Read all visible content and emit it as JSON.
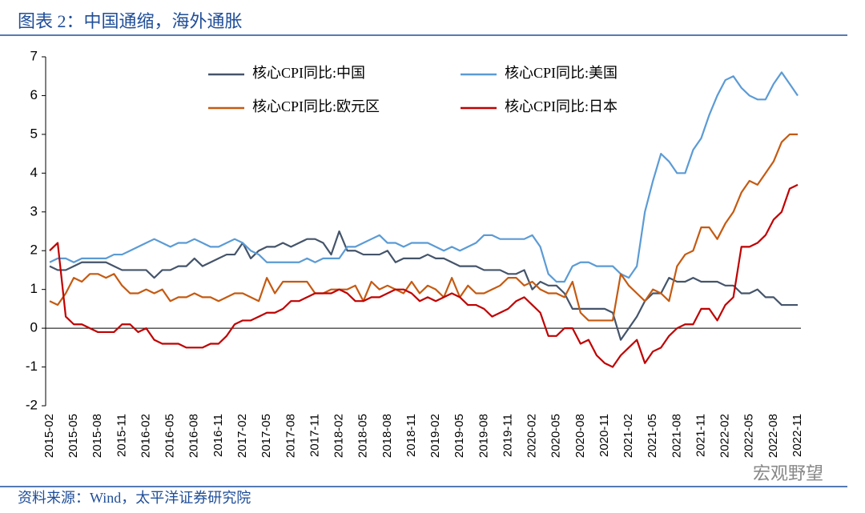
{
  "header": {
    "title": "图表 2：中国通缩，海外通胀"
  },
  "footer": {
    "source": "资料来源：Wind，太平洋证券研究院",
    "watermark": "宏观野望"
  },
  "chart_data": {
    "type": "line",
    "categories": [
      "2015-02",
      null,
      null,
      "2015-05",
      null,
      null,
      "2015-08",
      null,
      null,
      "2015-11",
      null,
      null,
      "2016-02",
      null,
      null,
      "2016-05",
      null,
      null,
      "2016-08",
      null,
      null,
      "2016-11",
      null,
      null,
      "2017-02",
      null,
      null,
      "2017-05",
      null,
      null,
      "2017-08",
      null,
      null,
      "2017-11",
      null,
      null,
      "2018-02",
      null,
      null,
      "2018-05",
      null,
      null,
      "2018-08",
      null,
      null,
      "2018-11",
      null,
      null,
      "2019-02",
      null,
      null,
      "2019-05",
      null,
      null,
      "2019-08",
      null,
      null,
      "2019-11",
      null,
      null,
      "2020-02",
      null,
      null,
      "2020-05",
      null,
      null,
      "2020-08",
      null,
      null,
      "2020-11",
      null,
      null,
      "2021-02",
      null,
      null,
      "2021-05",
      null,
      null,
      "2021-08",
      null,
      null,
      "2021-11",
      null,
      null,
      "2022-02",
      null,
      null,
      "2022-05",
      null,
      null,
      "2022-08",
      null,
      null,
      "2022-11"
    ],
    "series": [
      {
        "name": "核心CPI同比:中国",
        "color": "#44546a",
        "values": [
          1.6,
          1.5,
          1.5,
          1.6,
          1.7,
          1.7,
          1.7,
          1.7,
          1.6,
          1.5,
          1.5,
          1.5,
          1.5,
          1.3,
          1.5,
          1.5,
          1.6,
          1.6,
          1.8,
          1.6,
          1.7,
          1.8,
          1.9,
          1.9,
          2.2,
          1.8,
          2.0,
          2.1,
          2.1,
          2.2,
          2.1,
          2.2,
          2.3,
          2.3,
          2.2,
          1.9,
          2.5,
          2.0,
          2.0,
          1.9,
          1.9,
          1.9,
          2.0,
          1.7,
          1.8,
          1.8,
          1.8,
          1.9,
          1.8,
          1.8,
          1.7,
          1.6,
          1.6,
          1.6,
          1.5,
          1.5,
          1.5,
          1.4,
          1.4,
          1.5,
          1.0,
          1.2,
          1.1,
          1.1,
          0.9,
          0.5,
          0.5,
          0.5,
          0.5,
          0.5,
          0.4,
          -0.3,
          0.0,
          0.3,
          0.7,
          0.9,
          0.9,
          1.3,
          1.2,
          1.2,
          1.3,
          1.2,
          1.2,
          1.2,
          1.1,
          1.1,
          0.9,
          0.9,
          1.0,
          0.8,
          0.8,
          0.6,
          0.6,
          0.6
        ]
      },
      {
        "name": "核心CPI同比:美国",
        "color": "#5b9bd5",
        "values": [
          1.7,
          1.8,
          1.8,
          1.7,
          1.8,
          1.8,
          1.8,
          1.8,
          1.9,
          1.9,
          2.0,
          2.1,
          2.2,
          2.3,
          2.2,
          2.1,
          2.2,
          2.2,
          2.3,
          2.2,
          2.1,
          2.1,
          2.2,
          2.3,
          2.2,
          2.0,
          1.9,
          1.7,
          1.7,
          1.7,
          1.7,
          1.7,
          1.8,
          1.7,
          1.8,
          1.8,
          1.8,
          2.1,
          2.1,
          2.2,
          2.3,
          2.4,
          2.2,
          2.2,
          2.1,
          2.2,
          2.2,
          2.2,
          2.1,
          2.0,
          2.1,
          2.0,
          2.1,
          2.2,
          2.4,
          2.4,
          2.3,
          2.3,
          2.3,
          2.3,
          2.4,
          2.1,
          1.4,
          1.2,
          1.2,
          1.6,
          1.7,
          1.7,
          1.6,
          1.6,
          1.6,
          1.4,
          1.3,
          1.6,
          3.0,
          3.8,
          4.5,
          4.3,
          4.0,
          4.0,
          4.6,
          4.9,
          5.5,
          6.0,
          6.4,
          6.5,
          6.2,
          6.0,
          5.9,
          5.9,
          6.3,
          6.6,
          6.3,
          6.0
        ]
      },
      {
        "name": "核心CPI同比:欧元区",
        "color": "#c55a11",
        "values": [
          0.7,
          0.6,
          0.9,
          1.3,
          1.2,
          1.4,
          1.4,
          1.3,
          1.4,
          1.1,
          0.9,
          0.9,
          1.0,
          0.9,
          1.0,
          0.7,
          0.8,
          0.8,
          0.9,
          0.8,
          0.8,
          0.7,
          0.8,
          0.9,
          0.9,
          0.8,
          0.7,
          1.3,
          0.9,
          1.2,
          1.2,
          1.2,
          1.2,
          0.9,
          0.9,
          1.0,
          1.0,
          1.0,
          1.1,
          0.7,
          1.2,
          1.0,
          1.1,
          1.0,
          0.9,
          1.2,
          0.9,
          1.1,
          1.0,
          0.8,
          1.3,
          0.8,
          1.1,
          0.9,
          0.9,
          1.0,
          1.1,
          1.3,
          1.3,
          1.1,
          1.2,
          1.0,
          0.9,
          0.9,
          0.8,
          1.2,
          0.4,
          0.2,
          0.2,
          0.2,
          0.2,
          1.4,
          1.1,
          0.9,
          0.7,
          1.0,
          0.9,
          0.7,
          1.6,
          1.9,
          2.0,
          2.6,
          2.6,
          2.3,
          2.7,
          3.0,
          3.5,
          3.8,
          3.7,
          4.0,
          4.3,
          4.8,
          5.0,
          5.0
        ]
      },
      {
        "name": "核心CPI同比:日本",
        "color": "#c00000",
        "values": [
          2.0,
          2.2,
          0.3,
          0.1,
          0.1,
          0.0,
          -0.1,
          -0.1,
          -0.1,
          0.1,
          0.1,
          -0.1,
          0.0,
          -0.3,
          -0.4,
          -0.4,
          -0.4,
          -0.5,
          -0.5,
          -0.5,
          -0.4,
          -0.4,
          -0.2,
          0.1,
          0.2,
          0.2,
          0.3,
          0.4,
          0.4,
          0.5,
          0.7,
          0.7,
          0.8,
          0.9,
          0.9,
          0.9,
          1.0,
          0.9,
          0.7,
          0.7,
          0.8,
          0.8,
          0.9,
          1.0,
          1.0,
          0.9,
          0.7,
          0.8,
          0.7,
          0.8,
          0.9,
          0.8,
          0.6,
          0.6,
          0.5,
          0.3,
          0.4,
          0.5,
          0.7,
          0.8,
          0.6,
          0.4,
          -0.2,
          -0.2,
          0.0,
          0.0,
          -0.4,
          -0.3,
          -0.7,
          -0.9,
          -1.0,
          -0.7,
          -0.5,
          -0.3,
          -0.9,
          -0.6,
          -0.5,
          -0.2,
          0.0,
          0.1,
          0.1,
          0.5,
          0.5,
          0.2,
          0.6,
          0.8,
          2.1,
          2.1,
          2.2,
          2.4,
          2.8,
          3.0,
          3.6,
          3.7
        ]
      }
    ],
    "ylim": [
      -2,
      7
    ],
    "yticks": [
      -2,
      -1,
      0,
      1,
      2,
      3,
      4,
      5,
      6,
      7
    ],
    "grid": false
  }
}
